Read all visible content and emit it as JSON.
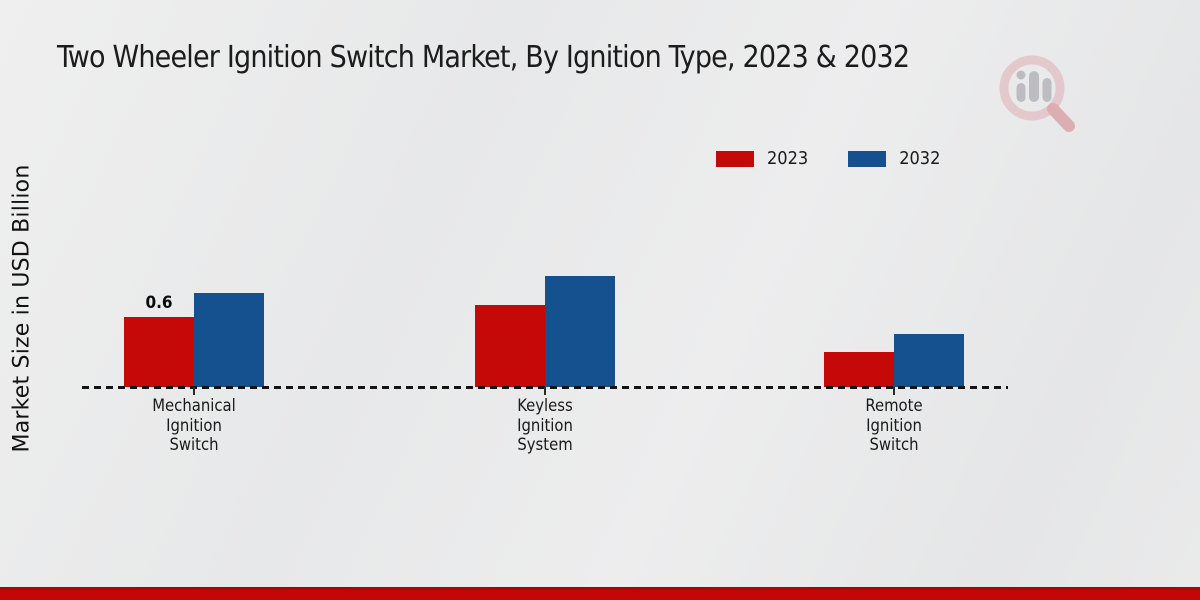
{
  "title": "Two Wheeler Ignition Switch Market, By Ignition Type, 2023 & 2032",
  "y_axis_label": "Market Size in USD Billion",
  "chart_data": {
    "type": "bar",
    "title": "Two Wheeler Ignition Switch Market, By Ignition Type, 2023 & 2032",
    "ylabel": "Market Size in USD Billion",
    "xlabel": "",
    "categories": [
      "Mechanical Ignition Switch",
      "Keyless Ignition System",
      "Remote Ignition Switch"
    ],
    "category_lines": [
      [
        "Mechanical",
        "Ignition",
        "Switch"
      ],
      [
        "Keyless",
        "Ignition",
        "System"
      ],
      [
        "Remote",
        "Ignition",
        "Switch"
      ]
    ],
    "series": [
      {
        "name": "2023",
        "color": "#c50808",
        "values": [
          0.6,
          0.7,
          0.3
        ]
      },
      {
        "name": "2032",
        "color": "#15508f",
        "values": [
          0.8,
          0.95,
          0.45
        ]
      }
    ],
    "value_labels": [
      {
        "series_index": 0,
        "category_index": 0,
        "text": "0.6"
      }
    ],
    "ylim": [
      0,
      1.0
    ],
    "grid": false,
    "baseline_style": "dashed",
    "legend_position": "top-right"
  },
  "colors": {
    "series_2023": "#c50808",
    "series_2032": "#15508f",
    "footer_band": "#c40606",
    "background": "#e9eaeb",
    "axis_line": "#141414"
  },
  "watermark_icon": "magnifier-bar-chart-logo"
}
